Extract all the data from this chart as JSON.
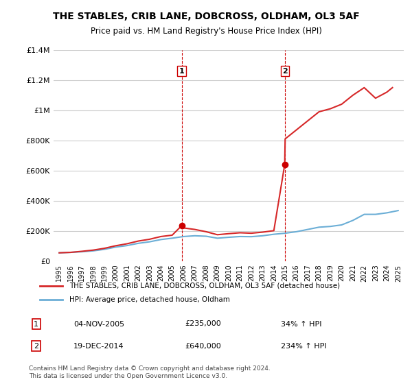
{
  "title": "THE STABLES, CRIB LANE, DOBCROSS, OLDHAM, OL3 5AF",
  "subtitle": "Price paid vs. HM Land Registry's House Price Index (HPI)",
  "hpi_label": "HPI: Average price, detached house, Oldham",
  "property_label": "THE STABLES, CRIB LANE, DOBCROSS, OLDHAM, OL3 5AF (detached house)",
  "footnote": "Contains HM Land Registry data © Crown copyright and database right 2024.\nThis data is licensed under the Open Government Licence v3.0.",
  "transaction1": {
    "label": "1",
    "date": "04-NOV-2005",
    "price": "£235,000",
    "hpi": "34% ↑ HPI",
    "x": 2005.84
  },
  "transaction2": {
    "label": "2",
    "date": "19-DEC-2014",
    "price": "£640,000",
    "hpi": "234% ↑ HPI",
    "x": 2014.96
  },
  "ylim": [
    0,
    1400000
  ],
  "yticks": [
    0,
    200000,
    400000,
    600000,
    800000,
    1000000,
    1200000,
    1400000
  ],
  "xlim": [
    1994.5,
    2025.5
  ],
  "hpi_color": "#6baed6",
  "property_color": "#d62728",
  "dashed_color": "#cc0000",
  "marker_color": "#cc0000",
  "hpi_years": [
    1995,
    1996,
    1997,
    1998,
    1999,
    2000,
    2001,
    2002,
    2003,
    2004,
    2005,
    2006,
    2007,
    2008,
    2009,
    2010,
    2011,
    2012,
    2013,
    2014,
    2015,
    2016,
    2017,
    2018,
    2019,
    2020,
    2021,
    2022,
    2023,
    2024,
    2025
  ],
  "hpi_values": [
    55000,
    58000,
    62000,
    68000,
    78000,
    93000,
    103000,
    118000,
    128000,
    143000,
    152000,
    163000,
    168000,
    165000,
    152000,
    158000,
    163000,
    162000,
    168000,
    178000,
    185000,
    195000,
    210000,
    225000,
    230000,
    240000,
    270000,
    310000,
    310000,
    320000,
    335000
  ],
  "property_years": [
    1995,
    1996,
    1997,
    1998,
    1999,
    2000,
    2001,
    2002,
    2003,
    2004,
    2005,
    2005.84,
    2006,
    2007,
    2008,
    2009,
    2010,
    2011,
    2012,
    2013,
    2014,
    2014.96,
    2015,
    2016,
    2017,
    2018,
    2019,
    2020,
    2021,
    2022,
    2023,
    2024,
    2024.5
  ],
  "property_values": [
    55000,
    58000,
    65000,
    73000,
    85000,
    102000,
    115000,
    133000,
    145000,
    163000,
    172000,
    235000,
    220000,
    210000,
    195000,
    175000,
    182000,
    188000,
    185000,
    192000,
    202000,
    640000,
    810000,
    870000,
    930000,
    990000,
    1010000,
    1040000,
    1100000,
    1150000,
    1080000,
    1120000,
    1150000
  ]
}
